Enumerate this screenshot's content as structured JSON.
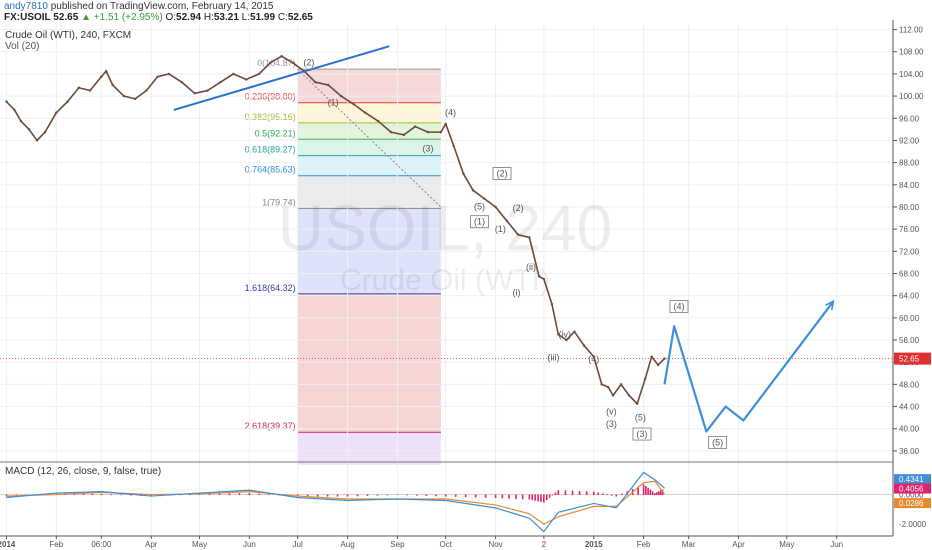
{
  "header": {
    "author": "andy7810",
    "published_text": "published on TradingView.com, February 14, 2015",
    "symbol": "FX:USOIL",
    "last": "52.65",
    "change": "+1.51 (+2.95%)",
    "open_label": "O:",
    "open": "52.94",
    "high_label": "H:",
    "high": "53.21",
    "low_label": "L:",
    "low": "51.99",
    "close_label": "C:",
    "close": "52.65"
  },
  "main_pane": {
    "title": "Crude Oil (WTI), 240, FXCM",
    "volume_label": "Vol (20)",
    "watermark_symbol": "USOIL, 240",
    "watermark_name": "Crude Oil (WTI)"
  },
  "macd_pane": {
    "title": "MACD (12, 26, close, 9, false, true)"
  },
  "colors": {
    "price_bar": "#6b4a3a",
    "trendline": "#2e6fd1",
    "projection": "#3d8fd9",
    "price_line": "#e03030",
    "macd_line": "#3d8fd9",
    "signal_line": "#e68a2e",
    "histogram": "#e0216e"
  },
  "chart_data": [
    {
      "type": "line",
      "title": "Crude Oil (WTI), 240, FXCM",
      "x_axis": {
        "type": "date",
        "tick_labels": [
          "2014",
          "Feb",
          "06:00",
          "Apr",
          "May",
          "Jun",
          "Jul",
          "Aug",
          "Sep",
          "Oct",
          "Nov",
          "2",
          "2015",
          "Feb",
          "Mar",
          "Apr",
          "May",
          "Jun"
        ],
        "tick_dates": [
          "2014-01-01",
          "2014-02-01",
          "2014-03-01",
          "2014-04-01",
          "2014-05-01",
          "2014-06-01",
          "2014-07-01",
          "2014-08-01",
          "2014-09-01",
          "2014-10-01",
          "2014-11-01",
          "2014-12-01",
          "2015-01-01",
          "2015-02-01",
          "2015-03-01",
          "2015-04-01",
          "2015-05-01",
          "2015-06-01"
        ],
        "range": [
          "2013-12-28",
          "2015-07-06"
        ]
      },
      "y_axis": {
        "range": [
          34,
          113
        ],
        "tick_labels": [
          "36.00",
          "40.00",
          "44.00",
          "48.00",
          "52.00",
          "56.00",
          "60.00",
          "64.00",
          "68.00",
          "72.00",
          "76.00",
          "80.00",
          "84.00",
          "88.00",
          "92.00",
          "96.00",
          "100.00",
          "104.00",
          "108.00",
          "112.00"
        ],
        "tick_values": [
          36,
          40,
          44,
          48,
          52,
          56,
          60,
          64,
          68,
          72,
          76,
          80,
          84,
          88,
          92,
          96,
          100,
          104,
          108,
          112
        ],
        "position": "right"
      },
      "last_price": {
        "value": 52.65,
        "label": "52.65"
      },
      "price_series": {
        "name": "FX:USOIL",
        "x": [
          "2014-01-01",
          "2014-01-06",
          "2014-01-10",
          "2014-01-15",
          "2014-01-20",
          "2014-01-25",
          "2014-02-01",
          "2014-02-08",
          "2014-02-15",
          "2014-02-22",
          "2014-03-01",
          "2014-03-04",
          "2014-03-08",
          "2014-03-15",
          "2014-03-22",
          "2014-03-29",
          "2014-04-05",
          "2014-04-12",
          "2014-04-20",
          "2014-04-28",
          "2014-05-06",
          "2014-05-14",
          "2014-05-22",
          "2014-05-30",
          "2014-06-07",
          "2014-06-14",
          "2014-06-21",
          "2014-06-28",
          "2014-07-05",
          "2014-07-12",
          "2014-07-20",
          "2014-07-28",
          "2014-08-05",
          "2014-08-12",
          "2014-08-20",
          "2014-08-28",
          "2014-09-05",
          "2014-09-12",
          "2014-09-20",
          "2014-09-28",
          "2014-10-01",
          "2014-10-06",
          "2014-10-12",
          "2014-10-18",
          "2014-10-25",
          "2014-11-01",
          "2014-11-08",
          "2014-11-15",
          "2014-11-22",
          "2014-11-28",
          "2014-12-01",
          "2014-12-06",
          "2014-12-10",
          "2014-12-15",
          "2014-12-20",
          "2014-12-26",
          "2015-01-01",
          "2015-01-06",
          "2015-01-10",
          "2015-01-13",
          "2015-01-18",
          "2015-01-23",
          "2015-01-28",
          "2015-02-02",
          "2015-02-06",
          "2015-02-10",
          "2015-02-14"
        ],
        "y": [
          99.0,
          97.5,
          95.5,
          94.0,
          92.0,
          93.5,
          97.0,
          99.0,
          101.5,
          101.0,
          103.5,
          104.5,
          102.0,
          100.0,
          99.5,
          101.0,
          103.5,
          104.0,
          102.5,
          100.5,
          101.0,
          102.5,
          104.0,
          103.0,
          104.0,
          106.0,
          107.2,
          106.0,
          104.5,
          102.5,
          102.0,
          100.0,
          98.5,
          97.0,
          95.5,
          93.5,
          93.0,
          94.5,
          93.5,
          93.5,
          95.0,
          91.0,
          86.0,
          83.0,
          81.5,
          80.0,
          77.5,
          75.0,
          74.5,
          67.5,
          67.0,
          62.5,
          57.0,
          56.0,
          57.5,
          55.0,
          53.0,
          48.0,
          47.5,
          46.0,
          48.0,
          46.0,
          44.5,
          49.0,
          53.0,
          51.5,
          52.65
        ]
      },
      "projection_series": {
        "x": [
          "2015-02-14",
          "2015-02-20",
          "2015-03-12",
          "2015-03-24",
          "2015-04-04",
          "2015-05-30"
        ],
        "y": [
          48.0,
          58.5,
          39.5,
          44.0,
          41.5,
          63.0
        ]
      },
      "trendline": {
        "x": [
          "2014-04-15",
          "2014-08-27"
        ],
        "y": [
          97.5,
          109.0
        ]
      },
      "fib_dotted_line": {
        "x": [
          "2014-07-01",
          "2014-09-28"
        ],
        "y": [
          104.8,
          80.0
        ]
      },
      "fibonacci": {
        "x_range": [
          "2014-07-01",
          "2014-09-28"
        ],
        "levels": [
          {
            "ratio": "0",
            "value": 104.87,
            "label": "0(104.87)"
          },
          {
            "ratio": "0.236",
            "value": 98.8,
            "label": "0.236(98.80)"
          },
          {
            "ratio": "0.382",
            "value": 95.16,
            "label": "0.382(95.16)"
          },
          {
            "ratio": "0.5",
            "value": 92.21,
            "label": "0.5(92.21)"
          },
          {
            "ratio": "0.618",
            "value": 89.27,
            "label": "0.618(89.27)"
          },
          {
            "ratio": "0.764",
            "value": 85.63,
            "label": "0.764(85.63)"
          },
          {
            "ratio": "1",
            "value": 79.74,
            "label": "1(79.74)"
          },
          {
            "ratio": "1.618",
            "value": 64.32,
            "label": "1.618(64.32)"
          },
          {
            "ratio": "2.618",
            "value": 39.37,
            "label": "2.618(39.37)"
          }
        ],
        "level_colors": [
          "#999999",
          "#e04040",
          "#9bbf2e",
          "#34a853",
          "#28a59b",
          "#2e8fce",
          "#888888",
          "#3a3aa8",
          "#d02060"
        ],
        "band_colors": [
          "#f4cccc",
          "#fff2cc",
          "#d9efd0",
          "#d0f0e0",
          "#d0eef7",
          "#e4e4e4",
          "#d4d8fa",
          "#f4c7c7",
          "#ead6f7"
        ],
        "extends_to": 33.5
      },
      "wave_labels": [
        {
          "text": "(2)",
          "x": "2014-07-08",
          "y": 105.5,
          "boxed": false
        },
        {
          "text": "(1)",
          "x": "2014-07-23",
          "y": 98.3,
          "boxed": false
        },
        {
          "text": "(3)",
          "x": "2014-09-20",
          "y": 90.0,
          "boxed": false
        },
        {
          "text": "(4)",
          "x": "2014-10-04",
          "y": 96.5,
          "boxed": false
        },
        {
          "text": "(5)",
          "x": "2014-10-22",
          "y": 79.5,
          "boxed": false
        },
        {
          "text": "(1)",
          "x": "2014-10-22",
          "y": 76.8,
          "boxed": true
        },
        {
          "text": "(2)",
          "x": "2014-11-05",
          "y": 85.5,
          "boxed": true
        },
        {
          "text": "(1)",
          "x": "2014-11-04",
          "y": 75.5,
          "boxed": false
        },
        {
          "text": "(2)",
          "x": "2014-11-15",
          "y": 79.3,
          "boxed": false
        },
        {
          "text": "(ii)",
          "x": "2014-11-23",
          "y": 68.6,
          "boxed": false
        },
        {
          "text": "(i)",
          "x": "2014-11-14",
          "y": 64.0,
          "boxed": false
        },
        {
          "text": "(iv)",
          "x": "2014-12-14",
          "y": 56.5,
          "boxed": false
        },
        {
          "text": "(iii)",
          "x": "2014-12-07",
          "y": 52.3,
          "boxed": false
        },
        {
          "text": "(4)",
          "x": "2015-01-01",
          "y": 52.0,
          "boxed": false
        },
        {
          "text": "(v)",
          "x": "2015-01-12",
          "y": 42.6,
          "boxed": false
        },
        {
          "text": "(3)",
          "x": "2015-01-12",
          "y": 40.3,
          "boxed": false
        },
        {
          "text": "(5)",
          "x": "2015-01-30",
          "y": 41.5,
          "boxed": false
        },
        {
          "text": "(3)",
          "x": "2015-01-31",
          "y": 38.5,
          "boxed": true
        },
        {
          "text": "(4)",
          "x": "2015-02-23",
          "y": 61.5,
          "boxed": true
        },
        {
          "text": "(5)",
          "x": "2015-03-19",
          "y": 37.0,
          "boxed": true
        }
      ]
    },
    {
      "type": "line",
      "title": "MACD (12, 26, close, 9, false, true)",
      "y_axis": {
        "range": [
          -2.8,
          2.2
        ],
        "tick_labels": [
          "0.0000",
          "-2.0000"
        ],
        "tick_values": [
          0,
          -2
        ],
        "position": "right"
      },
      "last_values": [
        {
          "name": "macd",
          "label": "0.4341",
          "value": 0.4341
        },
        {
          "name": "histogram",
          "label": "0.4056",
          "value": 0.4056
        },
        {
          "name": "signal",
          "label": "0.0286",
          "value": 0.0286
        }
      ],
      "series": [
        {
          "x": [
            "2014-01-01",
            "2014-02-01",
            "2014-03-01",
            "2014-04-01",
            "2014-05-01",
            "2014-06-01",
            "2014-07-01",
            "2014-08-01",
            "2014-09-01",
            "2014-10-01",
            "2014-11-01",
            "2014-11-22",
            "2014-12-01",
            "2014-12-10",
            "2015-01-01",
            "2015-01-15",
            "2015-02-01",
            "2015-02-08",
            "2015-02-14"
          ],
          "y": [
            -0.2,
            0.1,
            0.2,
            -0.1,
            0.1,
            0.3,
            -0.2,
            -0.4,
            -0.3,
            -0.4,
            -0.9,
            -1.6,
            -2.5,
            -1.2,
            -0.6,
            -0.9,
            1.5,
            1.0,
            0.43
          ]
        },
        {
          "x": [
            "2014-01-01",
            "2014-02-01",
            "2014-03-01",
            "2014-04-01",
            "2014-05-01",
            "2014-06-01",
            "2014-07-01",
            "2014-08-01",
            "2014-09-01",
            "2014-10-01",
            "2014-11-01",
            "2014-11-22",
            "2014-12-01",
            "2014-12-10",
            "2015-01-01",
            "2015-01-15",
            "2015-02-01",
            "2015-02-08",
            "2015-02-14"
          ],
          "y": [
            -0.1,
            0.0,
            0.15,
            0.0,
            0.05,
            0.2,
            -0.1,
            -0.3,
            -0.3,
            -0.3,
            -0.7,
            -1.3,
            -2.0,
            -1.5,
            -0.8,
            -0.8,
            0.8,
            0.9,
            0.03
          ]
        }
      ]
    }
  ]
}
